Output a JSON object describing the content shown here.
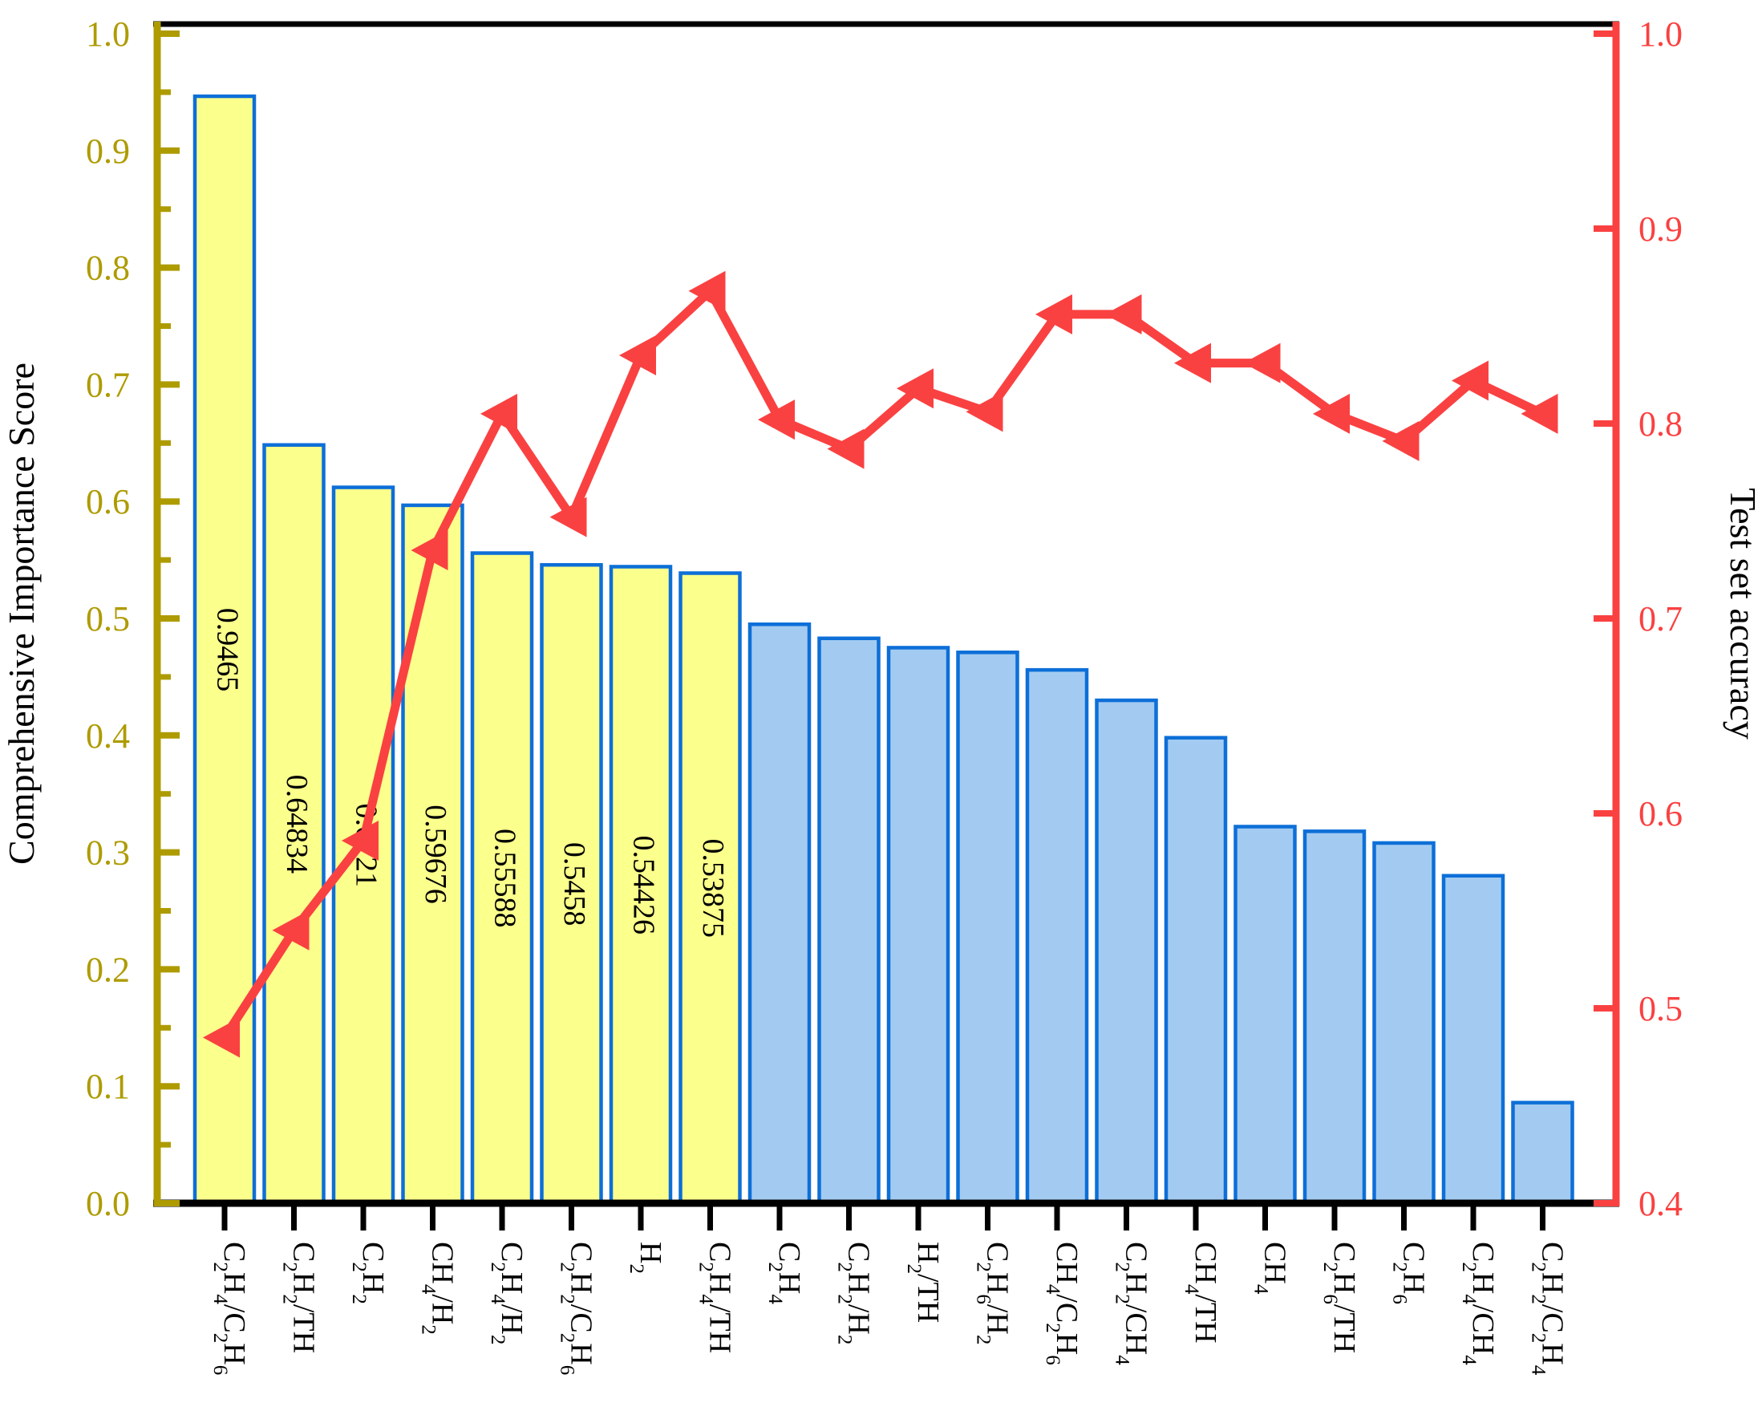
{
  "chart_data": {
    "type": "bar",
    "subtype": "bar-line-dual-axis",
    "categories": [
      "C2H4/C2H6",
      "C2H2/TH",
      "C2H2",
      "CH4/H2",
      "C2H4/H2",
      "C2H2/C2H6",
      "H2",
      "C2H4/TH",
      "C2H4",
      "C2H2/H2",
      "H2/TH",
      "C2H6/H2",
      "CH4/C2H6",
      "C2H2/CH4",
      "CH4/TH",
      "CH4",
      "C2H6/TH",
      "C2H6",
      "C2H4/CH4",
      "C2H2/C2H4"
    ],
    "series": [
      {
        "name": "Comprehensive Importance Score",
        "type": "bar",
        "axis": "left",
        "values": [
          0.9465,
          0.64834,
          0.6121,
          0.59676,
          0.55588,
          0.5458,
          0.54426,
          0.53875,
          0.495,
          0.483,
          0.475,
          0.471,
          0.456,
          0.43,
          0.398,
          0.322,
          0.318,
          0.308,
          0.28,
          0.086
        ],
        "bar_labels": [
          "0.9465",
          "0.64834",
          "0.6121",
          "0.59676",
          "0.55588",
          "0.5458",
          "0.54426",
          "0.53875",
          "",
          "",
          "",
          "",
          "",
          "",
          "",
          "",
          "",
          "",
          "",
          ""
        ],
        "highlighted_count": 8
      },
      {
        "name": "Test set accuracy",
        "type": "line",
        "axis": "right",
        "marker": "left-triangle",
        "values": [
          0.485,
          0.54,
          0.586,
          0.735,
          0.805,
          0.752,
          0.835,
          0.868,
          0.802,
          0.787,
          0.818,
          0.806,
          0.856,
          0.856,
          0.831,
          0.831,
          0.805,
          0.791,
          0.822,
          0.805
        ]
      }
    ],
    "y_left": {
      "label": "Comprehensive Importance Score",
      "min": 0.0,
      "max": 1.0,
      "major_step": 0.1,
      "minor_step": 0.05,
      "tick_labels": [
        "0.0",
        "0.1",
        "0.2",
        "0.3",
        "0.4",
        "0.5",
        "0.6",
        "0.7",
        "0.8",
        "0.9",
        "1.0"
      ],
      "color": "#AE9B00"
    },
    "y_right": {
      "label": "Test set accuracy",
      "min": 0.4,
      "max": 1.0,
      "major_step": 0.1,
      "tick_labels": [
        "0.4",
        "0.5",
        "0.6",
        "0.7",
        "0.8",
        "0.9",
        "1.0"
      ],
      "color": "#FA4141"
    },
    "x_axis": {
      "tick_marks": "per-category",
      "label_rotation_deg": 90
    },
    "grid": "off",
    "legend": "none",
    "colors": {
      "bar_highlight_fill": "#FBFF8C",
      "bar_fill": "#A3CBF1",
      "bar_border": "#0D6FD8",
      "line": "#FA4141",
      "left_axis": "#AE9B00",
      "right_axis": "#FA4141",
      "frame": "#000000",
      "text": "#000000"
    }
  }
}
